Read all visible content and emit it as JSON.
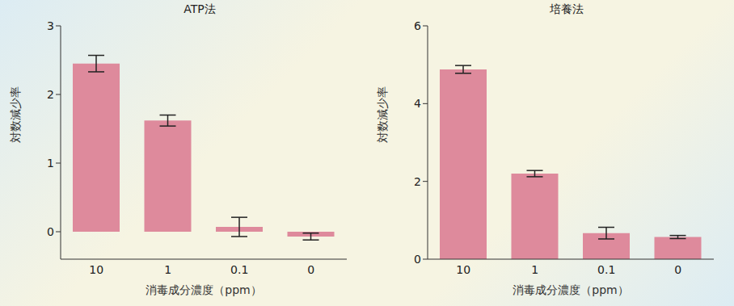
{
  "chart_data": [
    {
      "type": "bar",
      "title": "ATP法",
      "x_label": "消毒成分濃度（ppm）",
      "y_label": "対数減少率",
      "categories": [
        "10",
        "1",
        "0.1",
        "0"
      ],
      "values": [
        2.45,
        1.62,
        0.07,
        -0.07
      ],
      "errors": [
        0.12,
        0.08,
        0.14,
        0.05
      ],
      "color": "#de8a9c",
      "ylim": [
        -0.4,
        3
      ],
      "yticks": [
        0,
        1,
        2,
        3
      ],
      "grid": false
    },
    {
      "type": "bar",
      "title": "培養法",
      "x_label": "消毒成分濃度（ppm）",
      "y_label": "対数減少率",
      "categories": [
        "10",
        "1",
        "0.1",
        "0"
      ],
      "values": [
        4.88,
        2.2,
        0.67,
        0.57
      ],
      "errors": [
        0.1,
        0.08,
        0.15,
        0.04
      ],
      "color": "#de8a9c",
      "ylim": [
        0,
        6
      ],
      "yticks": [
        0,
        2,
        4,
        6
      ],
      "grid": false
    }
  ]
}
